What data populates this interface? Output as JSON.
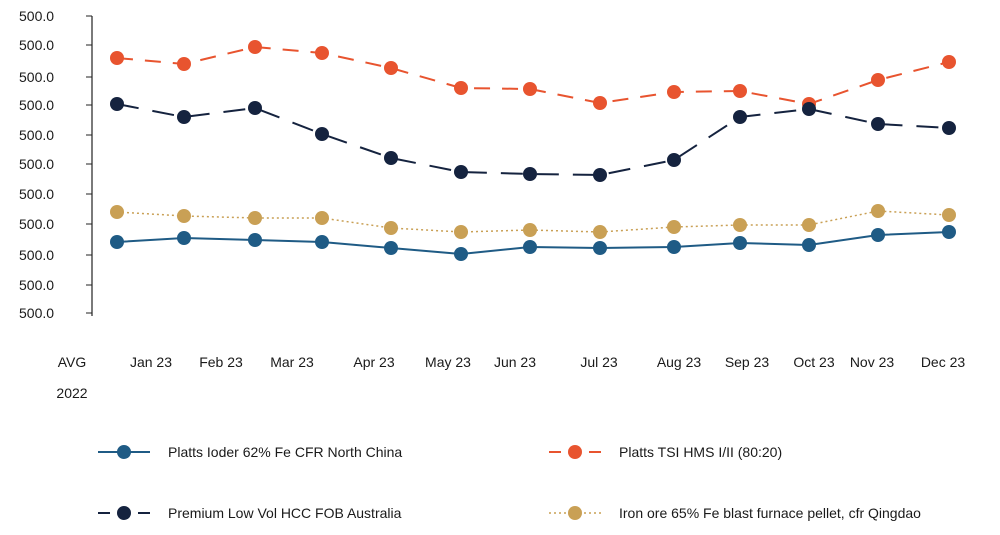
{
  "chart_data": {
    "type": "line",
    "title": "",
    "xlabel": "",
    "ylabel": "",
    "y_tick_labels": [
      "500.0",
      "500.0",
      "500.0",
      "500.0",
      "500.0",
      "500.0",
      "500.0",
      "500.0",
      "500.0",
      "500.0",
      "500.0"
    ],
    "categories": [
      "AVG\n2022",
      "Jan 23",
      "Feb 23",
      "Mar 23",
      "Apr 23",
      "May 23",
      "Jun 23",
      "Jul 23",
      "Aug 23",
      "Sep 23",
      "Oct 23",
      "Nov 23",
      "Dec 23"
    ],
    "grid": false,
    "legend_position": "bottom",
    "series": [
      {
        "name": "Platts Ioder 62% Fe CFR North China",
        "color": "#1f5b85",
        "style": "solid",
        "values": [
          242,
          238,
          240,
          242,
          248,
          254,
          247,
          248,
          247,
          243,
          245,
          235,
          232
        ]
      },
      {
        "name": "Platts TSI HMS I/II (80:20)",
        "color": "#e8542f",
        "style": "dashed",
        "values": [
          58,
          64,
          47,
          53,
          68,
          88,
          89,
          103,
          92,
          91,
          104,
          80,
          62
        ]
      },
      {
        "name": "Premium Low Vol HCC FOB Australia",
        "color": "#15233f",
        "style": "longdash",
        "values": [
          104,
          117,
          108,
          134,
          158,
          172,
          174,
          175,
          160,
          117,
          109,
          124,
          128
        ]
      },
      {
        "name": "Iron ore 65% Fe blast furnace pellet, cfr Qingdao",
        "color": "#c9a055",
        "style": "dotted",
        "values": [
          212,
          216,
          218,
          218,
          228,
          232,
          230,
          232,
          227,
          225,
          225,
          211,
          215
        ]
      }
    ]
  }
}
